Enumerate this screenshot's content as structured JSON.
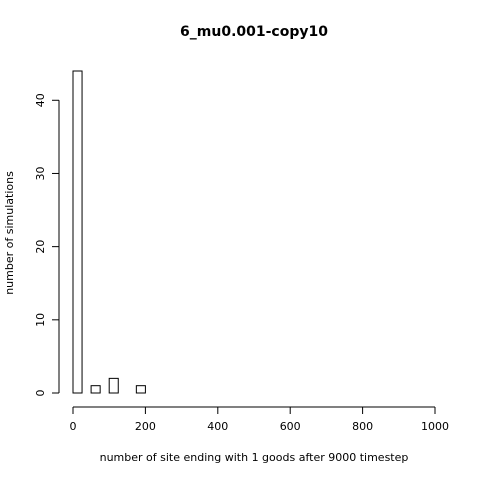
{
  "chart_data": {
    "type": "bar",
    "title": "6_mu0.001-copy10",
    "xlabel": "number of site ending with 1 goods after 9000 timestep",
    "ylabel": "number of simulations",
    "xlim": [
      0,
      1000
    ],
    "ylim": [
      0,
      44
    ],
    "x_ticks": [
      0,
      200,
      400,
      600,
      800,
      1000
    ],
    "y_ticks": [
      0,
      10,
      20,
      30,
      40
    ],
    "bin_width": 25,
    "bins": [
      {
        "start": 0,
        "end": 25,
        "count": 44
      },
      {
        "start": 25,
        "end": 50,
        "count": 0
      },
      {
        "start": 50,
        "end": 75,
        "count": 1
      },
      {
        "start": 75,
        "end": 100,
        "count": 0
      },
      {
        "start": 100,
        "end": 125,
        "count": 2
      },
      {
        "start": 125,
        "end": 150,
        "count": 0
      },
      {
        "start": 150,
        "end": 175,
        "count": 0
      },
      {
        "start": 175,
        "end": 200,
        "count": 1
      }
    ],
    "grid": false,
    "legend": "none"
  }
}
